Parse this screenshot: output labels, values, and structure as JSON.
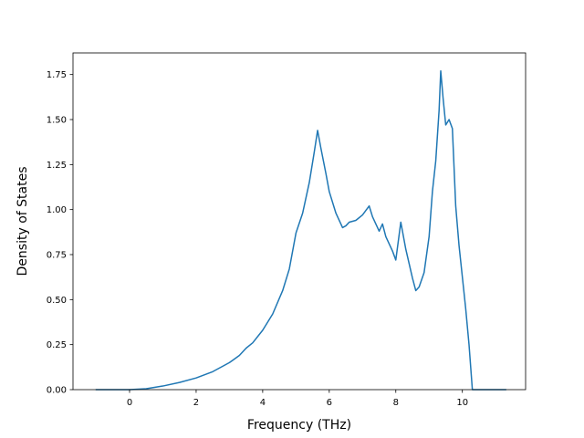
{
  "chart_data": {
    "type": "line",
    "title": "",
    "xlabel": "Frequency (THz)",
    "ylabel": "Density of States",
    "xlim": [
      -1.7,
      11.9
    ],
    "ylim": [
      0.0,
      1.87
    ],
    "xticks": [
      0,
      2,
      4,
      6,
      8,
      10
    ],
    "xtick_labels": [
      "0",
      "2",
      "4",
      "6",
      "8",
      "10"
    ],
    "yticks": [
      0.0,
      0.25,
      0.5,
      0.75,
      1.0,
      1.25,
      1.5,
      1.75
    ],
    "ytick_labels": [
      "0.00",
      "0.25",
      "0.50",
      "0.75",
      "1.00",
      "1.25",
      "1.50",
      "1.75"
    ],
    "grid": false,
    "series": [
      {
        "color": "#1f77b4",
        "x": [
          -1.0,
          -0.5,
          0.0,
          0.5,
          1.0,
          1.5,
          2.0,
          2.5,
          3.0,
          3.3,
          3.5,
          3.7,
          4.0,
          4.3,
          4.6,
          4.8,
          5.0,
          5.2,
          5.4,
          5.55,
          5.65,
          5.75,
          5.9,
          6.0,
          6.2,
          6.4,
          6.5,
          6.6,
          6.8,
          7.0,
          7.2,
          7.3,
          7.5,
          7.6,
          7.7,
          7.9,
          8.0,
          8.15,
          8.3,
          8.5,
          8.6,
          8.7,
          8.85,
          9.0,
          9.1,
          9.2,
          9.3,
          9.35,
          9.42,
          9.5,
          9.6,
          9.7,
          9.8,
          9.9,
          10.1,
          10.2,
          10.3,
          10.4,
          11.0,
          11.3
        ],
        "y": [
          0.0,
          0.0,
          0.0,
          0.005,
          0.02,
          0.04,
          0.065,
          0.1,
          0.15,
          0.19,
          0.23,
          0.26,
          0.33,
          0.42,
          0.55,
          0.67,
          0.87,
          0.98,
          1.15,
          1.32,
          1.44,
          1.34,
          1.2,
          1.1,
          0.98,
          0.9,
          0.91,
          0.93,
          0.94,
          0.97,
          1.02,
          0.96,
          0.88,
          0.92,
          0.85,
          0.77,
          0.72,
          0.93,
          0.78,
          0.62,
          0.55,
          0.57,
          0.65,
          0.85,
          1.1,
          1.27,
          1.55,
          1.77,
          1.62,
          1.47,
          1.5,
          1.45,
          1.02,
          0.8,
          0.45,
          0.25,
          0.0,
          0.0,
          0.0,
          0.0
        ]
      }
    ]
  }
}
